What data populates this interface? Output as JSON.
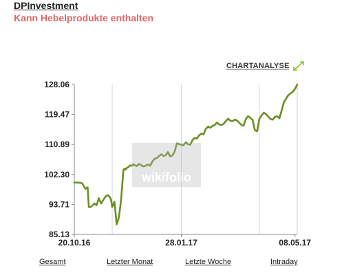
{
  "header": {
    "title": "DPInvestment",
    "subtitle": "Kann Hebelprodukte enthalten",
    "subtitle_color": "#e06666"
  },
  "chart_link": {
    "label": "CHARTANALYSE",
    "icon": "expand-icon",
    "accent": "#8cbf26"
  },
  "watermark": {
    "text": "wikifolio",
    "icon": "wikifolio-logo-icon"
  },
  "tabs": [
    {
      "label": "Gesamt"
    },
    {
      "label": "Letzter Monat"
    },
    {
      "label": "Letzte Woche"
    },
    {
      "label": "Intraday"
    }
  ],
  "chart_data": {
    "type": "line",
    "title": "",
    "xlabel": "",
    "ylabel": "",
    "line_color": "#6b8e23",
    "grid": "vertical",
    "ylim": [
      85.13,
      128.06
    ],
    "yticks": [
      128.06,
      119.47,
      110.89,
      102.3,
      93.71,
      85.13
    ],
    "ytick_labels": [
      "128.06",
      "119.47",
      "110.89",
      "102.30",
      "93.71",
      "85.13"
    ],
    "xticks": [
      {
        "label": "20.10.16",
        "pos": 0.0
      },
      {
        "label": "28.01.17",
        "pos": 0.48
      },
      {
        "label": "08.05.17",
        "pos": 0.99
      }
    ],
    "series": [
      {
        "x": [
          0.0,
          0.02,
          0.035,
          0.05,
          0.06,
          0.065,
          0.075,
          0.09,
          0.1,
          0.11,
          0.12,
          0.13,
          0.14,
          0.15,
          0.16,
          0.165,
          0.17,
          0.18,
          0.19,
          0.2,
          0.21,
          0.22,
          0.225,
          0.23,
          0.235,
          0.24,
          0.25,
          0.26,
          0.265,
          0.27,
          0.28,
          0.29,
          0.3,
          0.31,
          0.32,
          0.33,
          0.34,
          0.35,
          0.36,
          0.37,
          0.38,
          0.39,
          0.4,
          0.41,
          0.42,
          0.43,
          0.44,
          0.45,
          0.46,
          0.47,
          0.48,
          0.49,
          0.5,
          0.51,
          0.52,
          0.53,
          0.54,
          0.55,
          0.56,
          0.57,
          0.58,
          0.59,
          0.6,
          0.61,
          0.62,
          0.63,
          0.64,
          0.65,
          0.66,
          0.67,
          0.68,
          0.69,
          0.7,
          0.71,
          0.72,
          0.73,
          0.74,
          0.75,
          0.76,
          0.77,
          0.78,
          0.79,
          0.8,
          0.81,
          0.82,
          0.83,
          0.84,
          0.85,
          0.86,
          0.87,
          0.88,
          0.89,
          0.9,
          0.91,
          0.92,
          0.93,
          0.94,
          0.95,
          0.96,
          0.97,
          0.98,
          0.99,
          1.0
        ],
        "y": [
          100.0,
          100.0,
          99.8,
          98.2,
          98.6,
          93.0,
          93.0,
          94.0,
          93.5,
          95.5,
          94.0,
          95.0,
          96.0,
          96.4,
          95.8,
          95.0,
          93.0,
          94.5,
          88.0,
          90.0,
          95.0,
          103.5,
          104.0,
          103.7,
          104.2,
          104.3,
          104.9,
          104.8,
          105.3,
          105.0,
          104.7,
          105.3,
          105.0,
          104.6,
          104.8,
          105.2,
          104.8,
          106.0,
          106.8,
          107.0,
          107.6,
          108.1,
          107.6,
          107.8,
          108.7,
          107.5,
          107.8,
          108.8,
          111.2,
          111.0,
          110.8,
          110.7,
          111.5,
          111.0,
          110.8,
          112.1,
          112.8,
          112.6,
          113.5,
          114.0,
          113.8,
          115.4,
          116.0,
          115.7,
          116.2,
          116.5,
          117.2,
          116.6,
          116.5,
          116.8,
          117.6,
          118.3,
          117.7,
          117.6,
          118.0,
          117.8,
          117.1,
          116.5,
          116.3,
          118.3,
          119.0,
          118.5,
          117.9,
          115.0,
          114.7,
          118.2,
          119.2,
          120.0,
          119.6,
          118.9,
          118.2,
          118.0,
          118.8,
          119.0,
          118.4,
          120.6,
          123.0,
          124.0,
          125.0,
          125.5,
          126.0,
          126.8,
          128.06
        ]
      }
    ]
  }
}
